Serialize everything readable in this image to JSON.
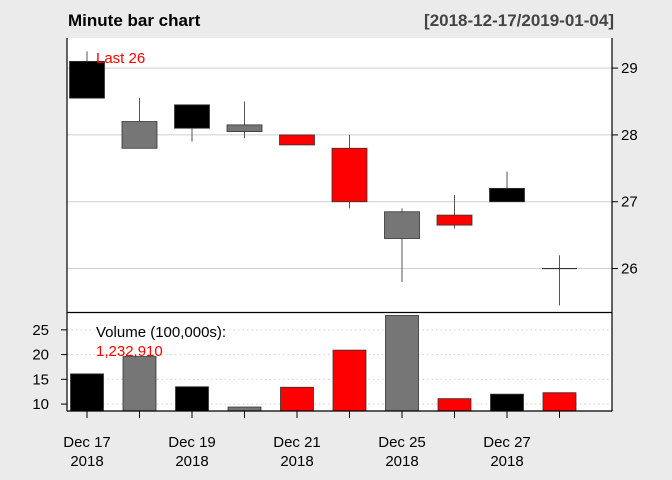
{
  "chart_data": {
    "type": "candlestick",
    "title": "Minute bar chart",
    "date_range": "[2018-12-17/2019-01-04]",
    "last_label": "Last 26",
    "volume_label": "Volume (100,000s):",
    "volume_value": "1,232,910",
    "price_axis": {
      "ylim": [
        25.35,
        29.45
      ],
      "ticks": [
        26,
        27,
        28,
        29
      ],
      "grid": true
    },
    "volume_axis": {
      "ylim": [
        8.6,
        28.4
      ],
      "ticks": [
        10,
        15,
        20,
        25
      ],
      "grid": "dotted"
    },
    "x_labels": [
      {
        "index": 0,
        "line1": "Dec 17",
        "line2": "2018"
      },
      {
        "index": 2,
        "line1": "Dec 19",
        "line2": "2018"
      },
      {
        "index": 4,
        "line1": "Dec 21",
        "line2": "2018"
      },
      {
        "index": 6,
        "line1": "Dec 25",
        "line2": "2018"
      },
      {
        "index": 8,
        "line1": "Dec 27",
        "line2": "2018"
      }
    ],
    "bars": [
      {
        "open": 28.55,
        "high": 29.25,
        "low": 28.55,
        "close": 29.1,
        "volume": 16.1,
        "color": "#000000"
      },
      {
        "open": 28.2,
        "high": 28.55,
        "low": 27.8,
        "close": 27.8,
        "volume": 19.6,
        "color": "#767676"
      },
      {
        "open": 28.1,
        "high": 28.45,
        "low": 27.9,
        "close": 28.45,
        "volume": 13.5,
        "color": "#000000"
      },
      {
        "open": 28.15,
        "high": 28.5,
        "low": 27.95,
        "close": 28.05,
        "volume": 9.4,
        "color": "#767676"
      },
      {
        "open": 28.0,
        "high": 28.0,
        "low": 27.85,
        "close": 27.85,
        "volume": 13.4,
        "color": "#ff0000"
      },
      {
        "open": 27.8,
        "high": 28.0,
        "low": 26.9,
        "close": 27.0,
        "volume": 20.9,
        "color": "#ff0000"
      },
      {
        "open": 26.85,
        "high": 26.9,
        "low": 25.8,
        "close": 26.45,
        "volume": 27.9,
        "color": "#767676"
      },
      {
        "open": 26.8,
        "high": 27.1,
        "low": 26.6,
        "close": 26.65,
        "volume": 11.1,
        "color": "#ff0000"
      },
      {
        "open": 27.0,
        "high": 27.45,
        "low": 27.0,
        "close": 27.2,
        "volume": 12.0,
        "color": "#000000"
      },
      {
        "open": 26.0,
        "high": 26.2,
        "low": 25.45,
        "close": 26.0,
        "volume": 12.3,
        "color": "#ff0000"
      }
    ]
  }
}
